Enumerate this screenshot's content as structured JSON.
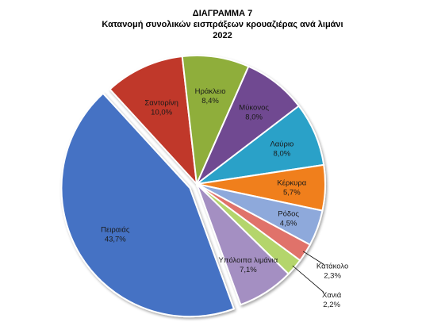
{
  "chart_data": {
    "type": "pie",
    "title": "ΔΙΑΓΡΑΜΜΑ 7",
    "subtitle": "Κατανομή συνολικών εισπράξεων κρουαζιέρας ανά λιμάνι",
    "year_label": "2022",
    "unit": "%",
    "slices": [
      {
        "label": "Πειραιάς",
        "value_text": "43,7%",
        "value": 43.7,
        "color": "#4472c4",
        "exploded": true
      },
      {
        "label": "Σαντορίνη",
        "value_text": "10,0%",
        "value": 10.0,
        "color": "#c0392b"
      },
      {
        "label": "Ηράκλειο",
        "value_text": "8,4%",
        "value": 8.4,
        "color": "#8fae3a"
      },
      {
        "label": "Μύκονος",
        "value_text": "8,0%",
        "value": 8.0,
        "color": "#6f4a91"
      },
      {
        "label": "Λαύριο",
        "value_text": "8,0%",
        "value": 8.0,
        "color": "#2aa1c8"
      },
      {
        "label": "Κέρκυρα",
        "value_text": "5,7%",
        "value": 5.7,
        "color": "#f07f1c"
      },
      {
        "label": "Ρόδος",
        "value_text": "4,5%",
        "value": 4.5,
        "color": "#8ea9db"
      },
      {
        "label": "Κατάκολο",
        "value_text": "2,3%",
        "value": 2.3,
        "color": "#e0726a"
      },
      {
        "label": "Χανιά",
        "value_text": "2,2%",
        "value": 2.2,
        "color": "#b4d56c"
      },
      {
        "label": "Υπόλοιπα λιμάνια",
        "value_text": "7,1%",
        "value": 7.1,
        "color": "#a48fc2"
      }
    ]
  }
}
